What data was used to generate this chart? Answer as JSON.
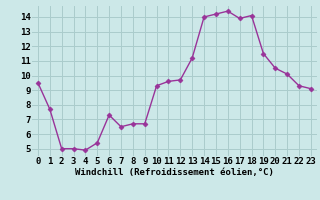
{
  "x": [
    0,
    1,
    2,
    3,
    4,
    5,
    6,
    7,
    8,
    9,
    10,
    11,
    12,
    13,
    14,
    15,
    16,
    17,
    18,
    19,
    20,
    21,
    22,
    23
  ],
  "y": [
    9.5,
    7.7,
    5.0,
    5.0,
    4.9,
    5.4,
    7.3,
    6.5,
    6.7,
    6.7,
    9.3,
    9.6,
    9.7,
    11.2,
    14.0,
    14.2,
    14.4,
    13.9,
    14.1,
    11.5,
    10.5,
    10.1,
    9.3,
    9.1
  ],
  "line_color": "#993399",
  "marker_color": "#993399",
  "bg_color": "#cce8e8",
  "grid_color": "#aacccc",
  "xlabel": "Windchill (Refroidissement éolien,°C)",
  "xtick_labels": [
    "0",
    "1",
    "2",
    "3",
    "4",
    "5",
    "6",
    "7",
    "8",
    "9",
    "10",
    "11",
    "12",
    "13",
    "14",
    "15",
    "16",
    "17",
    "18",
    "19",
    "20",
    "21",
    "22",
    "23"
  ],
  "yticks": [
    5,
    6,
    7,
    8,
    9,
    10,
    11,
    12,
    13,
    14
  ],
  "ylim": [
    4.5,
    14.75
  ],
  "xlim": [
    -0.5,
    23.5
  ],
  "xlabel_fontsize": 6.5,
  "tick_fontsize": 6.5,
  "linewidth": 1.0,
  "markersize": 2.5
}
